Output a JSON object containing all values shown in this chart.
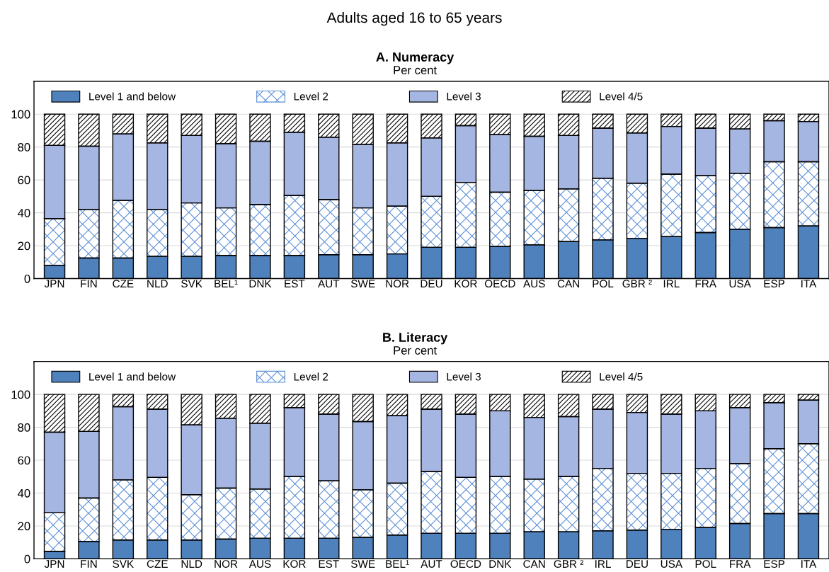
{
  "chart_data": [
    {
      "type": "bar",
      "title": "A. Numeracy",
      "subtitle": "Per cent",
      "annotations": [
        "Adults aged 16 to 65 years"
      ],
      "stacked": true,
      "legend": "top",
      "grid": "y",
      "ylim": [
        0,
        120
      ],
      "yticks": [
        0,
        20,
        40,
        60,
        80,
        100
      ],
      "categories": [
        "JPN",
        "FIN",
        "CZE",
        "NLD",
        "SVK",
        "BEL¹",
        "DNK",
        "EST",
        "AUT",
        "SWE",
        "NOR",
        "DEU",
        "KOR",
        "OECD",
        "AUS",
        "CAN",
        "POL",
        "GBR ²",
        "IRL",
        "FRA",
        "USA",
        "ESP",
        "ITA"
      ],
      "series": [
        {
          "name": "Level 1 and below",
          "color": "#4f81bd",
          "values": [
            8,
            12.5,
            12.5,
            13.5,
            13.5,
            14,
            14,
            14,
            14.5,
            14.5,
            15,
            19,
            19,
            19.5,
            20.5,
            22.5,
            23.5,
            24.5,
            25.5,
            28,
            30,
            31,
            32
          ]
        },
        {
          "name": "Level 2",
          "color": "#5b8fd6",
          "values": [
            28.5,
            29.5,
            35,
            28.5,
            32.5,
            29,
            31,
            36.5,
            33.5,
            28.5,
            29,
            31,
            39.5,
            33,
            33,
            32,
            37.5,
            33.5,
            38,
            34.5,
            34,
            40,
            39
          ]
        },
        {
          "name": "Level 3",
          "color": "#a6b6e2",
          "values": [
            44.5,
            38.5,
            40.5,
            40.5,
            41,
            39,
            38.5,
            38.5,
            38,
            38.5,
            38.5,
            35.5,
            34.5,
            35,
            33,
            32.5,
            30.5,
            30.5,
            29,
            29,
            27,
            25,
            24.5
          ]
        },
        {
          "name": "Level 4/5",
          "color": "#000000",
          "values": [
            19,
            19.5,
            12,
            17.5,
            13,
            18,
            16.5,
            11,
            14,
            18.5,
            17.5,
            14.5,
            7,
            12.5,
            13.5,
            13,
            8.5,
            11.5,
            7.5,
            8.5,
            9,
            4,
            4.5
          ]
        }
      ]
    },
    {
      "type": "bar",
      "title": "B. Literacy",
      "subtitle": "Per cent",
      "stacked": true,
      "legend": "top",
      "grid": "y",
      "ylim": [
        0,
        120
      ],
      "yticks": [
        0,
        20,
        40,
        60,
        80,
        100
      ],
      "categories": [
        "JPN",
        "FIN",
        "SVK",
        "CZE",
        "NLD",
        "NOR",
        "AUS",
        "KOR",
        "EST",
        "SWE",
        "BEL¹",
        "AUT",
        "OECD",
        "DNK",
        "CAN",
        "GBR ²",
        "IRL",
        "DEU",
        "USA",
        "POL",
        "FRA",
        "ESP",
        "ITA"
      ],
      "series": [
        {
          "name": "Level 1 and below",
          "color": "#4f81bd",
          "values": [
            4.5,
            10.5,
            11.5,
            11.5,
            11.5,
            12,
            12.5,
            12.5,
            12.5,
            13,
            14.5,
            15.5,
            15.5,
            15.5,
            16.5,
            16.5,
            17,
            17.5,
            18,
            19,
            21.5,
            27.5,
            27.5
          ]
        },
        {
          "name": "Level 2",
          "color": "#5b8fd6",
          "values": [
            23.5,
            26.5,
            36.5,
            38,
            27.5,
            31,
            30,
            37.5,
            35,
            29,
            31.5,
            37.5,
            34,
            34.5,
            32,
            33.5,
            38,
            34.5,
            34,
            36,
            36.5,
            39.5,
            42.5
          ]
        },
        {
          "name": "Level 3",
          "color": "#a6b6e2",
          "values": [
            49,
            40.5,
            44.5,
            41.5,
            42.5,
            42.5,
            40,
            42,
            40.5,
            41.5,
            41,
            38,
            38.5,
            40,
            37.5,
            36.5,
            36,
            37,
            36,
            35,
            34,
            28,
            26.5
          ]
        },
        {
          "name": "Level 4/5",
          "color": "#000000",
          "values": [
            23,
            22.5,
            7.5,
            9,
            18.5,
            14.5,
            17.5,
            8,
            12,
            16.5,
            13,
            9,
            12,
            10,
            14,
            13.5,
            9,
            11,
            12,
            10,
            8,
            5,
            3.5
          ]
        }
      ]
    }
  ]
}
